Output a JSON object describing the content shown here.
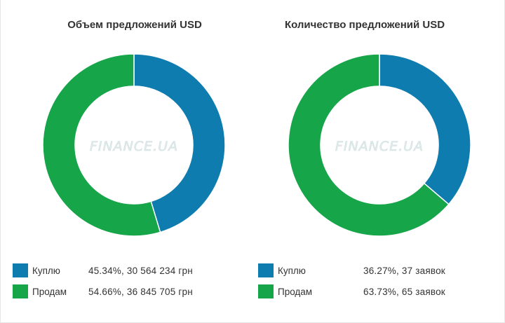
{
  "colors": {
    "buy": "#0f7cb0",
    "sell": "#16a549"
  },
  "watermark_text": "FINANCE.UA",
  "chart_data": [
    {
      "type": "pie",
      "title": "Объем предложений USD",
      "slices": [
        {
          "label": "Куплю",
          "percent": 45.34,
          "value_text": "45.34%, 30 564 234 грн"
        },
        {
          "label": "Продам",
          "percent": 54.66,
          "value_text": "54.66%, 36 845 705 грн"
        }
      ],
      "legend_position": "bottom-left"
    },
    {
      "type": "pie",
      "title": "Количество предложений USD",
      "slices": [
        {
          "label": "Куплю",
          "percent": 36.27,
          "value_text": "36.27%, 37 заявок"
        },
        {
          "label": "Продам",
          "percent": 63.73,
          "value_text": "63.73%, 65 заявок"
        }
      ],
      "legend_position": "bottom-left"
    }
  ]
}
